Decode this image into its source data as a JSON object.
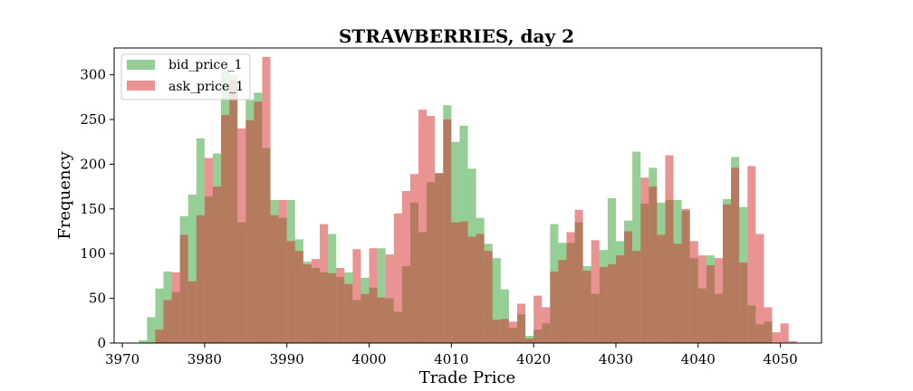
{
  "chart_data": {
    "type": "histogram",
    "title": "STRAWBERRIES, day 2",
    "xlabel": "Trade Price",
    "ylabel": "Frequency",
    "xlim": [
      3969,
      4055
    ],
    "ylim": [
      0,
      330
    ],
    "x_ticks": [
      3970,
      3980,
      3990,
      4000,
      4010,
      4020,
      4030,
      4040,
      4050
    ],
    "y_ticks": [
      0,
      50,
      100,
      150,
      200,
      250,
      300
    ],
    "legend_position": "upper-left",
    "alpha": 0.5,
    "series": [
      {
        "name": "bid_price_1",
        "color": "#2ca02c",
        "bins": [
          {
            "left": 3972,
            "value": 3
          },
          {
            "left": 3973,
            "value": 29
          },
          {
            "left": 3974,
            "value": 61
          },
          {
            "left": 3975,
            "value": 80
          },
          {
            "left": 3976,
            "value": 57
          },
          {
            "left": 3977,
            "value": 142
          },
          {
            "left": 3978,
            "value": 166
          },
          {
            "left": 3979,
            "value": 229
          },
          {
            "left": 3980,
            "value": 164
          },
          {
            "left": 3981,
            "value": 212
          },
          {
            "left": 3982,
            "value": 304
          },
          {
            "left": 3983,
            "value": 300
          },
          {
            "left": 3984,
            "value": 135
          },
          {
            "left": 3985,
            "value": 272
          },
          {
            "left": 3986,
            "value": 280
          },
          {
            "left": 3987,
            "value": 218
          },
          {
            "left": 3988,
            "value": 160
          },
          {
            "left": 3989,
            "value": 140
          },
          {
            "left": 3990,
            "value": 160
          },
          {
            "left": 3991,
            "value": 116
          },
          {
            "left": 3992,
            "value": 91
          },
          {
            "left": 3993,
            "value": 84
          },
          {
            "left": 3994,
            "value": 79
          },
          {
            "left": 3995,
            "value": 122
          },
          {
            "left": 3996,
            "value": 74
          },
          {
            "left": 3997,
            "value": 79
          },
          {
            "left": 3998,
            "value": 48
          },
          {
            "left": 3999,
            "value": 73
          },
          {
            "left": 4000,
            "value": 62
          },
          {
            "left": 4001,
            "value": 106
          },
          {
            "left": 4002,
            "value": 50
          },
          {
            "left": 4003,
            "value": 35
          },
          {
            "left": 4004,
            "value": 86
          },
          {
            "left": 4005,
            "value": 157
          },
          {
            "left": 4006,
            "value": 124
          },
          {
            "left": 4007,
            "value": 180
          },
          {
            "left": 4008,
            "value": 190
          },
          {
            "left": 4009,
            "value": 266
          },
          {
            "left": 4010,
            "value": 225
          },
          {
            "left": 4011,
            "value": 243
          },
          {
            "left": 4012,
            "value": 195
          },
          {
            "left": 4013,
            "value": 140
          },
          {
            "left": 4014,
            "value": 111
          },
          {
            "left": 4015,
            "value": 95
          },
          {
            "left": 4016,
            "value": 60
          },
          {
            "left": 4017,
            "value": 17
          },
          {
            "left": 4018,
            "value": 32
          },
          {
            "left": 4019,
            "value": 8
          },
          {
            "left": 4020,
            "value": 15
          },
          {
            "left": 4021,
            "value": 22
          },
          {
            "left": 4022,
            "value": 133
          },
          {
            "left": 4023,
            "value": 112
          },
          {
            "left": 4024,
            "value": 112
          },
          {
            "left": 4025,
            "value": 135
          },
          {
            "left": 4026,
            "value": 86
          },
          {
            "left": 4027,
            "value": 55
          },
          {
            "left": 4028,
            "value": 104
          },
          {
            "left": 4029,
            "value": 162
          },
          {
            "left": 4030,
            "value": 114
          },
          {
            "left": 4031,
            "value": 137
          },
          {
            "left": 4032,
            "value": 214
          },
          {
            "left": 4033,
            "value": 156
          },
          {
            "left": 4034,
            "value": 196
          },
          {
            "left": 4035,
            "value": 157
          },
          {
            "left": 4036,
            "value": 160
          },
          {
            "left": 4037,
            "value": 160
          },
          {
            "left": 4038,
            "value": 148
          },
          {
            "left": 4039,
            "value": 95
          },
          {
            "left": 4040,
            "value": 61
          },
          {
            "left": 4041,
            "value": 98
          },
          {
            "left": 4042,
            "value": 55
          },
          {
            "left": 4043,
            "value": 161
          },
          {
            "left": 4044,
            "value": 208
          },
          {
            "left": 4045,
            "value": 152
          },
          {
            "left": 4046,
            "value": 42
          },
          {
            "left": 4047,
            "value": 21
          },
          {
            "left": 4048,
            "value": 24
          }
        ]
      },
      {
        "name": "ask_price_1",
        "color": "#d62728",
        "bins": [
          {
            "left": 3974,
            "value": 15
          },
          {
            "left": 3975,
            "value": 48
          },
          {
            "left": 3976,
            "value": 79
          },
          {
            "left": 3977,
            "value": 121
          },
          {
            "left": 3978,
            "value": 69
          },
          {
            "left": 3979,
            "value": 143
          },
          {
            "left": 3980,
            "value": 207
          },
          {
            "left": 3981,
            "value": 175
          },
          {
            "left": 3982,
            "value": 255
          },
          {
            "left": 3983,
            "value": 294
          },
          {
            "left": 3984,
            "value": 240
          },
          {
            "left": 3985,
            "value": 249
          },
          {
            "left": 3986,
            "value": 270
          },
          {
            "left": 3987,
            "value": 320
          },
          {
            "left": 3988,
            "value": 143
          },
          {
            "left": 3989,
            "value": 160
          },
          {
            "left": 3990,
            "value": 114
          },
          {
            "left": 3991,
            "value": 103
          },
          {
            "left": 3992,
            "value": 88
          },
          {
            "left": 3993,
            "value": 94
          },
          {
            "left": 3994,
            "value": 133
          },
          {
            "left": 3995,
            "value": 78
          },
          {
            "left": 3996,
            "value": 84
          },
          {
            "left": 3997,
            "value": 66
          },
          {
            "left": 3998,
            "value": 105
          },
          {
            "left": 3999,
            "value": 55
          },
          {
            "left": 4000,
            "value": 106
          },
          {
            "left": 4001,
            "value": 51
          },
          {
            "left": 4002,
            "value": 99
          },
          {
            "left": 4003,
            "value": 145
          },
          {
            "left": 4004,
            "value": 170
          },
          {
            "left": 4005,
            "value": 189
          },
          {
            "left": 4006,
            "value": 261
          },
          {
            "left": 4007,
            "value": 254
          },
          {
            "left": 4008,
            "value": 190
          },
          {
            "left": 4009,
            "value": 250
          },
          {
            "left": 4010,
            "value": 135
          },
          {
            "left": 4011,
            "value": 136
          },
          {
            "left": 4012,
            "value": 119
          },
          {
            "left": 4013,
            "value": 122
          },
          {
            "left": 4014,
            "value": 103
          },
          {
            "left": 4015,
            "value": 26
          },
          {
            "left": 4016,
            "value": 27
          },
          {
            "left": 4017,
            "value": 24
          },
          {
            "left": 4018,
            "value": 44
          },
          {
            "left": 4019,
            "value": 5
          },
          {
            "left": 4020,
            "value": 53
          },
          {
            "left": 4021,
            "value": 40
          },
          {
            "left": 4022,
            "value": 80
          },
          {
            "left": 4023,
            "value": 93
          },
          {
            "left": 4024,
            "value": 124
          },
          {
            "left": 4025,
            "value": 149
          },
          {
            "left": 4026,
            "value": 81
          },
          {
            "left": 4027,
            "value": 115
          },
          {
            "left": 4028,
            "value": 85
          },
          {
            "left": 4029,
            "value": 88
          },
          {
            "left": 4030,
            "value": 98
          },
          {
            "left": 4031,
            "value": 125
          },
          {
            "left": 4032,
            "value": 103
          },
          {
            "left": 4033,
            "value": 185
          },
          {
            "left": 4034,
            "value": 175
          },
          {
            "left": 4035,
            "value": 121
          },
          {
            "left": 4036,
            "value": 210
          },
          {
            "left": 4037,
            "value": 111
          },
          {
            "left": 4038,
            "value": 150
          },
          {
            "left": 4039,
            "value": 114
          },
          {
            "left": 4040,
            "value": 98
          },
          {
            "left": 4041,
            "value": 87
          },
          {
            "left": 4042,
            "value": 95
          },
          {
            "left": 4043,
            "value": 155
          },
          {
            "left": 4044,
            "value": 196
          },
          {
            "left": 4045,
            "value": 90
          },
          {
            "left": 4046,
            "value": 198
          },
          {
            "left": 4047,
            "value": 122
          },
          {
            "left": 4048,
            "value": 40
          },
          {
            "left": 4049,
            "value": 12
          },
          {
            "left": 4050,
            "value": 22
          },
          {
            "left": 4051,
            "value": 2
          }
        ]
      }
    ]
  }
}
